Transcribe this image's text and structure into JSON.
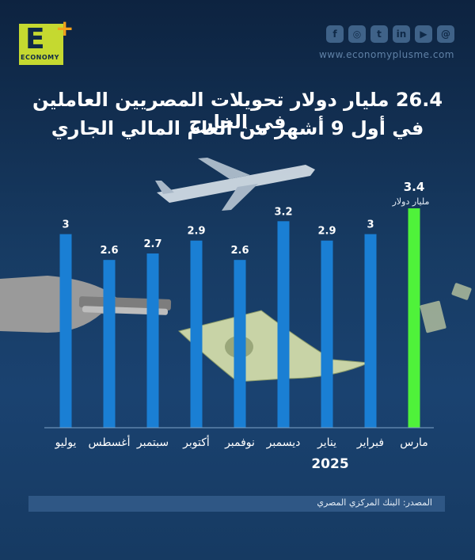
{
  "brand": {
    "logo_letter": "E",
    "logo_word": "ECONOMY",
    "website": "www.economyplusme.com"
  },
  "socials": [
    {
      "icon": "facebook-icon",
      "glyph": "f"
    },
    {
      "icon": "instagram-icon",
      "glyph": "◎"
    },
    {
      "icon": "twitter-icon",
      "glyph": "t"
    },
    {
      "icon": "linkedin-icon",
      "glyph": "in"
    },
    {
      "icon": "youtube-icon",
      "glyph": "▶"
    },
    {
      "icon": "threads-icon",
      "glyph": "@"
    }
  ],
  "title_line1": "26.4 مليار دولار تحويلات المصريين العاملين في الخارج",
  "title_line2": "في أول 9 أشهر من العام المالي الجاري",
  "source": "المصدر: البنك المركزي المصري",
  "colors": {
    "bar": "#1a7fd4",
    "highlight": "#4ff23a",
    "background": "#173b63"
  },
  "chart_data": {
    "type": "bar",
    "categories": [
      "يوليو",
      "أغسطس",
      "سبتمبر",
      "أكتوبر",
      "نوفمبر",
      "ديسمبر",
      "يناير",
      "فبراير",
      "مارس"
    ],
    "values": [
      3,
      2.6,
      2.7,
      2.9,
      2.6,
      3.2,
      2.9,
      3,
      3.4
    ],
    "data_labels": [
      "3",
      "2.6",
      "2.7",
      "2.9",
      "2.6",
      "3.2",
      "2.9",
      "3",
      "3.4"
    ],
    "highlight_index": 8,
    "highlight_unit": "مليار دولار",
    "year_label": "2025",
    "ylim": [
      0,
      3.4
    ],
    "grid": false
  }
}
